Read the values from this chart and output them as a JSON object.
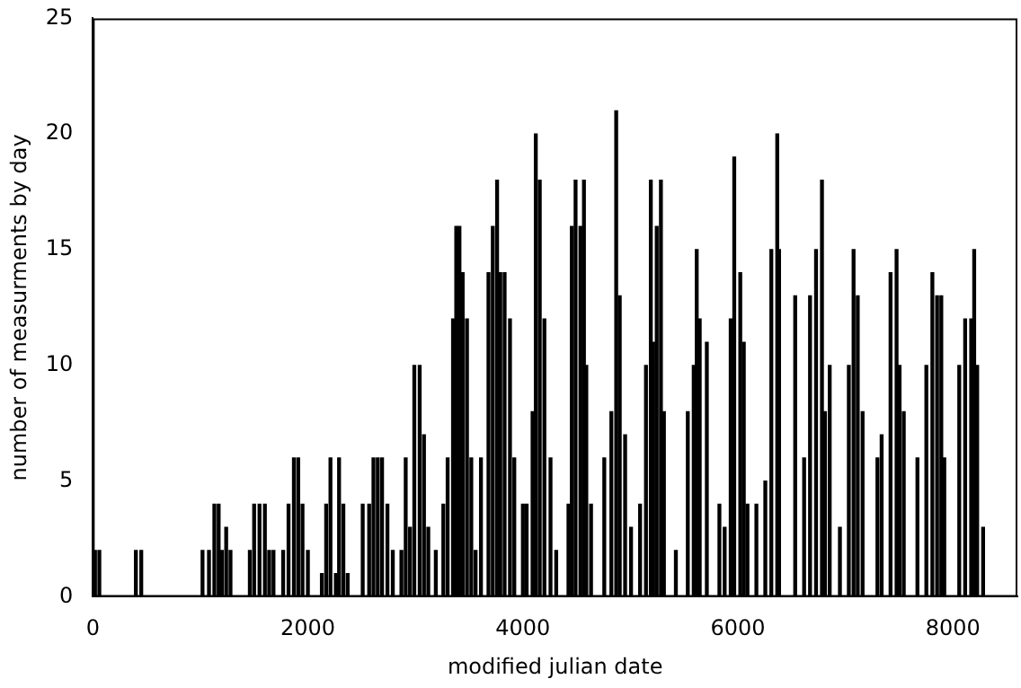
{
  "chart_data": {
    "type": "bar",
    "xlabel": "modified julian date",
    "ylabel": "number of measurments by day",
    "color": "#000000",
    "x": [
      20,
      60,
      400,
      450,
      1020,
      1080,
      1130,
      1170,
      1200,
      1240,
      1280,
      1460,
      1500,
      1550,
      1600,
      1640,
      1680,
      1770,
      1820,
      1870,
      1910,
      1950,
      2000,
      2130,
      2170,
      2210,
      2260,
      2290,
      2330,
      2370,
      2510,
      2570,
      2610,
      2650,
      2690,
      2740,
      2790,
      2870,
      2910,
      2950,
      2990,
      3040,
      3080,
      3120,
      3190,
      3260,
      3300,
      3350,
      3380,
      3410,
      3440,
      3480,
      3520,
      3560,
      3610,
      3680,
      3720,
      3760,
      3790,
      3830,
      3880,
      3920,
      4000,
      4035,
      4090,
      4120,
      4157,
      4200,
      4257,
      4310,
      4424,
      4455,
      4490,
      4535,
      4568,
      4590,
      4634,
      4757,
      4823,
      4868,
      4901,
      4951,
      5006,
      5090,
      5145,
      5190,
      5212,
      5245,
      5284,
      5312,
      5423,
      5534,
      5589,
      5617,
      5645,
      5711,
      5828,
      5877,
      5933,
      5966,
      6022,
      6055,
      6089,
      6172,
      6255,
      6311,
      6366,
      6383,
      6533,
      6616,
      6671,
      6727,
      6782,
      6810,
      6854,
      6949,
      7032,
      7076,
      7115,
      7160,
      7298,
      7337,
      7420,
      7476,
      7504,
      7543,
      7670,
      7753,
      7809,
      7853,
      7892,
      7920,
      8059,
      8114,
      8170,
      8198,
      8226,
      8281
    ],
    "values": [
      2,
      2,
      2,
      2,
      2,
      2,
      4,
      4,
      2,
      3,
      2,
      2,
      4,
      4,
      4,
      2,
      2,
      2,
      4,
      6,
      6,
      4,
      2,
      1,
      4,
      6,
      1,
      6,
      4,
      1,
      4,
      4,
      6,
      6,
      6,
      4,
      2,
      2,
      6,
      3,
      10,
      10,
      7,
      3,
      2,
      4,
      6,
      12,
      16,
      16,
      14,
      12,
      6,
      2,
      6,
      14,
      16,
      18,
      14,
      14,
      12,
      6,
      4,
      4,
      8,
      20,
      18,
      12,
      6,
      2,
      4,
      16,
      18,
      16,
      18,
      10,
      4,
      6,
      8,
      21,
      13,
      7,
      3,
      4,
      10,
      18,
      11,
      16,
      18,
      8,
      2,
      8,
      10,
      15,
      12,
      11,
      4,
      3,
      12,
      19,
      14,
      11,
      4,
      4,
      5,
      15,
      20,
      15,
      13,
      6,
      13,
      15,
      18,
      8,
      10,
      3,
      10,
      15,
      13,
      8,
      6,
      7,
      14,
      15,
      10,
      8,
      6,
      10,
      14,
      13,
      13,
      6,
      10,
      12,
      12,
      15,
      10,
      3
    ],
    "xlim": [
      0,
      8600
    ],
    "xticks": [
      0,
      2000,
      4000,
      6000,
      8000
    ],
    "ylim": [
      0,
      25
    ],
    "yticks": [
      0,
      5,
      10,
      15,
      20,
      25
    ],
    "grid": false,
    "legend": false
  }
}
